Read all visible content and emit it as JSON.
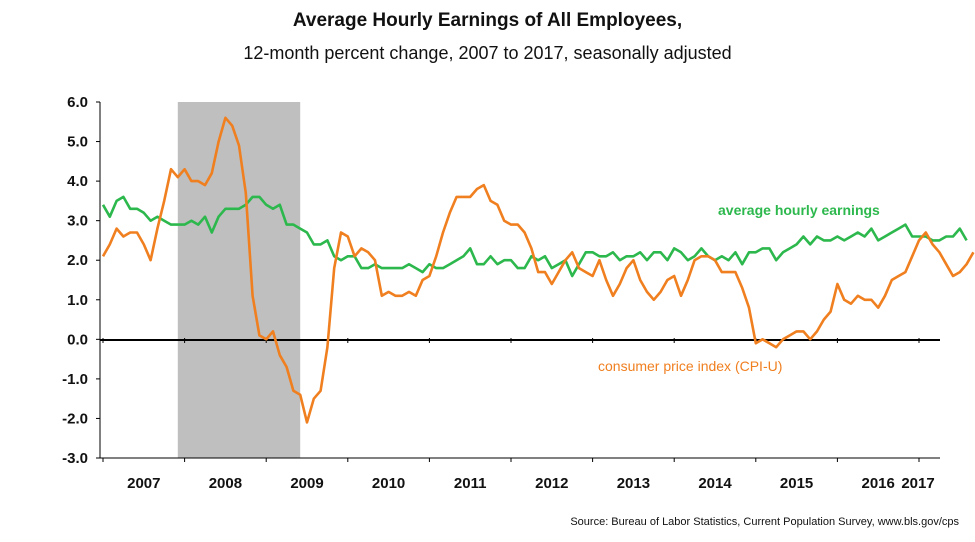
{
  "chart_data": {
    "type": "line",
    "title": "Average Hourly Earnings of All Employees,",
    "subtitle": "12-month percent change, 2007 to 2017, seasonally adjusted",
    "source": "Source: Bureau of Labor Statistics, Current Population Survey, www.bls.gov/cps",
    "ylim": [
      -3.0,
      6.0
    ],
    "yticks": [
      "6.0",
      "5.0",
      "4.0",
      "3.0",
      "2.0",
      "1.0",
      "0.0",
      "-1.0",
      "-2.0",
      "-3.0"
    ],
    "ytick_values": [
      6,
      5,
      4,
      3,
      2,
      1,
      0,
      -1,
      -2,
      -3
    ],
    "xticks": [
      "2007",
      "2008",
      "2009",
      "2010",
      "2011",
      "2012",
      "2013",
      "2014",
      "2015",
      "2016",
      "2017"
    ],
    "x_start": "2007-01",
    "recession": {
      "start": "2007-12",
      "end": "2009-06"
    },
    "series": [
      {
        "name": "average hourly earnings",
        "color": "#2db84d",
        "values": [
          3.4,
          3.1,
          3.5,
          3.6,
          3.3,
          3.3,
          3.2,
          3.0,
          3.1,
          3.0,
          2.9,
          2.9,
          2.9,
          3.0,
          2.9,
          3.1,
          2.7,
          3.1,
          3.3,
          3.3,
          3.3,
          3.4,
          3.6,
          3.6,
          3.4,
          3.3,
          3.4,
          2.9,
          2.9,
          2.8,
          2.7,
          2.4,
          2.4,
          2.5,
          2.1,
          2.0,
          2.1,
          2.1,
          1.8,
          1.8,
          1.9,
          1.8,
          1.8,
          1.8,
          1.8,
          1.9,
          1.8,
          1.7,
          1.9,
          1.8,
          1.8,
          1.9,
          2.0,
          2.1,
          2.3,
          1.9,
          1.9,
          2.1,
          1.9,
          2.0,
          2.0,
          1.8,
          1.8,
          2.1,
          2.0,
          2.1,
          1.8,
          1.9,
          2.0,
          1.6,
          1.9,
          2.2,
          2.2,
          2.1,
          2.1,
          2.2,
          2.0,
          2.1,
          2.1,
          2.2,
          2.0,
          2.2,
          2.2,
          2.0,
          2.3,
          2.2,
          2.0,
          2.1,
          2.3,
          2.1,
          2.0,
          2.1,
          2.0,
          2.2,
          1.9,
          2.2,
          2.2,
          2.3,
          2.3,
          2.0,
          2.2,
          2.3,
          2.4,
          2.6,
          2.4,
          2.6,
          2.5,
          2.5,
          2.6,
          2.5,
          2.6,
          2.7,
          2.6,
          2.8,
          2.5,
          2.6,
          2.7,
          2.8,
          2.9,
          2.6,
          2.6,
          2.6,
          2.5,
          2.5,
          2.6,
          2.6,
          2.8,
          2.5
        ]
      },
      {
        "name": "consumer price index (CPI-U)",
        "color": "#f07f1f",
        "values": [
          2.1,
          2.4,
          2.8,
          2.6,
          2.7,
          2.7,
          2.4,
          2.0,
          2.8,
          3.5,
          4.3,
          4.1,
          4.3,
          4.0,
          4.0,
          3.9,
          4.2,
          5.0,
          5.6,
          5.4,
          4.9,
          3.7,
          1.1,
          0.1,
          0.0,
          0.2,
          -0.4,
          -0.7,
          -1.3,
          -1.4,
          -2.1,
          -1.5,
          -1.3,
          -0.2,
          1.8,
          2.7,
          2.6,
          2.1,
          2.3,
          2.2,
          2.0,
          1.1,
          1.2,
          1.1,
          1.1,
          1.2,
          1.1,
          1.5,
          1.6,
          2.1,
          2.7,
          3.2,
          3.6,
          3.6,
          3.6,
          3.8,
          3.9,
          3.5,
          3.4,
          3.0,
          2.9,
          2.9,
          2.7,
          2.3,
          1.7,
          1.7,
          1.4,
          1.7,
          2.0,
          2.2,
          1.8,
          1.7,
          1.6,
          2.0,
          1.5,
          1.1,
          1.4,
          1.8,
          2.0,
          1.5,
          1.2,
          1.0,
          1.2,
          1.5,
          1.6,
          1.1,
          1.5,
          2.0,
          2.1,
          2.1,
          2.0,
          1.7,
          1.7,
          1.7,
          1.3,
          0.8,
          -0.1,
          0.0,
          -0.1,
          -0.2,
          0.0,
          0.1,
          0.2,
          0.2,
          0.0,
          0.2,
          0.5,
          0.7,
          1.4,
          1.0,
          0.9,
          1.1,
          1.0,
          1.0,
          0.8,
          1.1,
          1.5,
          1.6,
          1.7,
          2.1,
          2.5,
          2.7,
          2.4,
          2.2,
          1.9,
          1.6,
          1.7,
          1.9,
          2.2
        ]
      }
    ],
    "annotations": [
      {
        "text": "average hourly earnings",
        "series": 0
      },
      {
        "text": "consumer price index (CPI-U)",
        "series": 1
      }
    ],
    "grid": false,
    "legend": "inline labels"
  }
}
